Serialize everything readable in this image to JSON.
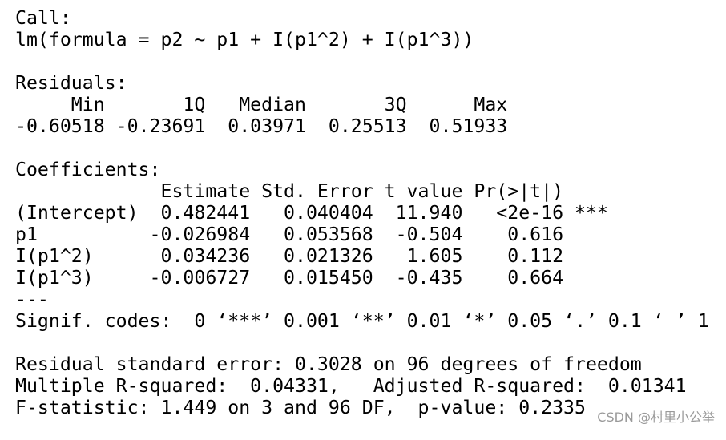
{
  "console": {
    "blocks": [
      [
        "Call:",
        "lm(formula = p2 ~ p1 + I(p1^2) + I(p1^3))"
      ],
      [
        "Residuals:",
        "     Min       1Q   Median       3Q      Max",
        "-0.60518 -0.23691  0.03971  0.25513  0.51933"
      ],
      [
        "Coefficients:",
        "             Estimate Std. Error t value Pr(>|t|)",
        "(Intercept)  0.482441   0.040404  11.940   <2e-16 ***",
        "p1          -0.026984   0.053568  -0.504    0.616",
        "I(p1^2)      0.034236   0.021326   1.605    0.112",
        "I(p1^3)     -0.006727   0.015450  -0.435    0.664",
        "---",
        "Signif. codes:  0 ‘***’ 0.001 ‘**’ 0.01 ‘*’ 0.05 ‘.’ 0.1 ‘ ’ 1"
      ],
      [
        "Residual standard error: 0.3028 on 96 degrees of freedom",
        "Multiple R-squared:  0.04331,   Adjusted R-squared:  0.01341",
        "F-statistic: 1.449 on 3 and 96 DF,  p-value: 0.2335"
      ]
    ]
  },
  "watermark": "CSDN @村里小公举"
}
